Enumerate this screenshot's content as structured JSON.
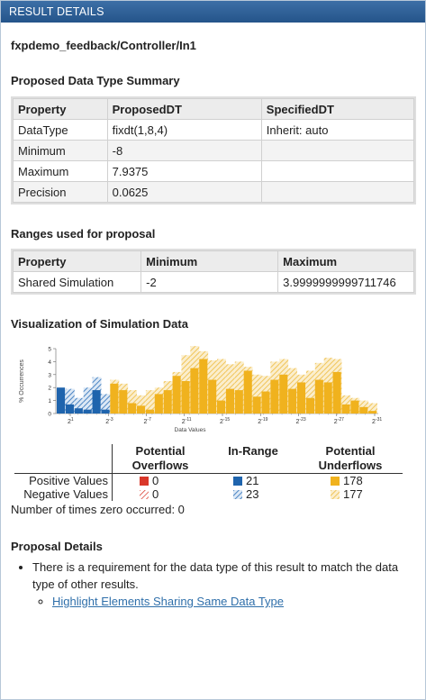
{
  "panel": {
    "title": "RESULT DETAILS"
  },
  "block_path": "fxpdemo_feedback/Controller/In1",
  "summary": {
    "heading": "Proposed Data Type Summary",
    "columns": [
      "Property",
      "ProposedDT",
      "SpecifiedDT"
    ],
    "rows": [
      [
        "DataType",
        "fixdt(1,8,4)",
        "Inherit: auto"
      ],
      [
        "Minimum",
        "-8",
        ""
      ],
      [
        "Maximum",
        "7.9375",
        ""
      ],
      [
        "Precision",
        "0.0625",
        ""
      ]
    ]
  },
  "ranges": {
    "heading": "Ranges used for proposal",
    "columns": [
      "Property",
      "Minimum",
      "Maximum"
    ],
    "rows": [
      [
        "Shared Simulation",
        "-2",
        "3.9999999999711746"
      ]
    ]
  },
  "visualization": {
    "heading": "Visualization of Simulation Data",
    "legend": {
      "col_overflow": [
        "Potential",
        "Overflows"
      ],
      "col_inrange": "In-Range",
      "col_underflow": [
        "Potential",
        "Underflows"
      ],
      "row_positive": "Positive Values",
      "row_negative": "Negative Values",
      "positive": {
        "overflow": "0",
        "inrange": "21",
        "underflow": "178"
      },
      "negative": {
        "overflow": "0",
        "inrange": "23",
        "underflow": "177"
      }
    },
    "zero_count_text": "Number of times zero occurred: 0"
  },
  "colors": {
    "overflow": "#d9372a",
    "inrange": "#1f64ad",
    "underflow": "#f0b21e",
    "underflow_hatch": "#f2d28a",
    "inrange_hatch": "#3f7fc2"
  },
  "chart_data": {
    "type": "bar",
    "ylabel": "% Occurrences",
    "xlabel": "Data Values",
    "ylim": [
      0,
      5
    ],
    "yticks": [
      "0",
      "1",
      "2",
      "3",
      "4",
      "5"
    ],
    "xtick_labels": [
      {
        "base": "2",
        "exp": "1"
      },
      {
        "base": "2",
        "exp": "-3"
      },
      {
        "base": "2",
        "exp": "-7"
      },
      {
        "base": "2",
        "exp": "-11"
      },
      {
        "base": "2",
        "exp": "-15"
      },
      {
        "base": "2",
        "exp": "-19"
      },
      {
        "base": "2",
        "exp": "-23"
      },
      {
        "base": "2",
        "exp": "-27"
      },
      {
        "base": "2",
        "exp": "-31"
      }
    ],
    "series": [
      {
        "name": "Positive Values",
        "values": [
          2.0,
          0.7,
          0.4,
          0.3,
          1.8,
          0.3,
          2.3,
          1.8,
          0.8,
          0.6,
          0.3,
          1.5,
          1.8,
          2.9,
          2.5,
          3.5,
          4.2,
          2.6,
          1.0,
          1.9,
          1.8,
          3.3,
          1.3,
          1.7,
          2.6,
          3.0,
          1.9,
          2.4,
          1.2,
          2.6,
          2.4,
          3.2,
          0.7,
          1.0,
          0.5,
          0.2
        ]
      },
      {
        "name": "Negative Values",
        "values": [
          1.8,
          1.9,
          1.2,
          2.0,
          2.8,
          1.5,
          2.6,
          2.3,
          1.8,
          1.4,
          1.8,
          2.0,
          2.5,
          3.2,
          4.5,
          5.2,
          4.8,
          4.1,
          4.2,
          3.8,
          4.0,
          3.6,
          3.0,
          2.9,
          4.0,
          4.2,
          3.5,
          3.0,
          3.3,
          3.9,
          4.3,
          4.2,
          1.4,
          1.2,
          1.0,
          0.8
        ]
      }
    ],
    "in_range_bins": 6
  },
  "proposal": {
    "heading": "Proposal Details",
    "item": "There is a requirement for the data type of this result to match the data type of other results.",
    "link": "Highlight Elements Sharing Same Data Type"
  }
}
